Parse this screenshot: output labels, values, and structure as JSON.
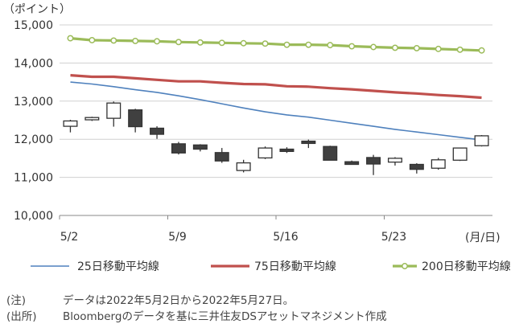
{
  "chart_data": {
    "type": "candlestick",
    "y_unit": "（ポイント）",
    "x_unit": "(月/日)",
    "ylim": [
      10000,
      15000
    ],
    "y_ticks": [
      "10,000",
      "11,000",
      "12,000",
      "13,000",
      "14,000",
      "15,000"
    ],
    "x_tick_labels": [
      {
        "label": "5/2",
        "day": 0
      },
      {
        "label": "5/9",
        "day": 5
      },
      {
        "label": "5/16",
        "day": 10
      },
      {
        "label": "5/23",
        "day": 15
      }
    ],
    "grid": true,
    "legend_position": "bottom",
    "days": [
      "5/2",
      "5/3",
      "5/4",
      "5/5",
      "5/6",
      "5/9",
      "5/10",
      "5/11",
      "5/12",
      "5/13",
      "5/16",
      "5/17",
      "5/18",
      "5/19",
      "5/20",
      "5/23",
      "5/24",
      "5/25",
      "5/26",
      "5/27"
    ],
    "candles": [
      {
        "o": 12340,
        "h": 12510,
        "l": 12180,
        "c": 12480
      },
      {
        "o": 12510,
        "h": 12590,
        "l": 12480,
        "c": 12570
      },
      {
        "o": 12550,
        "h": 12990,
        "l": 12330,
        "c": 12950
      },
      {
        "o": 12770,
        "h": 12800,
        "l": 12180,
        "c": 12330
      },
      {
        "o": 12290,
        "h": 12340,
        "l": 12010,
        "c": 12130
      },
      {
        "o": 11880,
        "h": 11930,
        "l": 11600,
        "c": 11640
      },
      {
        "o": 11850,
        "h": 11870,
        "l": 11680,
        "c": 11740
      },
      {
        "o": 11650,
        "h": 11770,
        "l": 11380,
        "c": 11430
      },
      {
        "o": 11180,
        "h": 11460,
        "l": 11130,
        "c": 11380
      },
      {
        "o": 11510,
        "h": 11810,
        "l": 11480,
        "c": 11770
      },
      {
        "o": 11740,
        "h": 11790,
        "l": 11640,
        "c": 11680
      },
      {
        "o": 11950,
        "h": 11990,
        "l": 11770,
        "c": 11890
      },
      {
        "o": 11810,
        "h": 11830,
        "l": 11450,
        "c": 11450
      },
      {
        "o": 11410,
        "h": 11440,
        "l": 11330,
        "c": 11340
      },
      {
        "o": 11520,
        "h": 11590,
        "l": 11060,
        "c": 11350
      },
      {
        "o": 11400,
        "h": 11530,
        "l": 11310,
        "c": 11500
      },
      {
        "o": 11340,
        "h": 11370,
        "l": 11100,
        "c": 11210
      },
      {
        "o": 11240,
        "h": 11510,
        "l": 11200,
        "c": 11460
      },
      {
        "o": 11450,
        "h": 11780,
        "l": 11430,
        "c": 11770
      },
      {
        "o": 11830,
        "h": 12110,
        "l": 11810,
        "c": 12090
      }
    ],
    "series": [
      {
        "name": "25日移動平均線",
        "color": "#4f81bd",
        "values": [
          13500,
          13450,
          13380,
          13300,
          13230,
          13140,
          13040,
          12930,
          12820,
          12720,
          12640,
          12580,
          12500,
          12420,
          12340,
          12260,
          12190,
          12120,
          12050,
          11980
        ]
      },
      {
        "name": "75日移動平均線",
        "color": "#c0504d",
        "values": [
          13680,
          13640,
          13640,
          13600,
          13560,
          13520,
          13520,
          13480,
          13450,
          13440,
          13390,
          13380,
          13340,
          13310,
          13270,
          13230,
          13200,
          13160,
          13130,
          13090
        ]
      },
      {
        "name": "200日移動平均線",
        "color": "#9bbb59",
        "values": [
          14650,
          14600,
          14590,
          14580,
          14570,
          14550,
          14540,
          14530,
          14520,
          14510,
          14480,
          14480,
          14470,
          14440,
          14420,
          14400,
          14390,
          14370,
          14350,
          14330
        ]
      }
    ]
  },
  "notes": [
    {
      "key": "(注)",
      "text": "データは2022年5月2日から2022年5月27日。"
    },
    {
      "key": "(出所)",
      "text": "Bloombergのデータを基に三井住友DSアセットマネジメント作成"
    }
  ]
}
